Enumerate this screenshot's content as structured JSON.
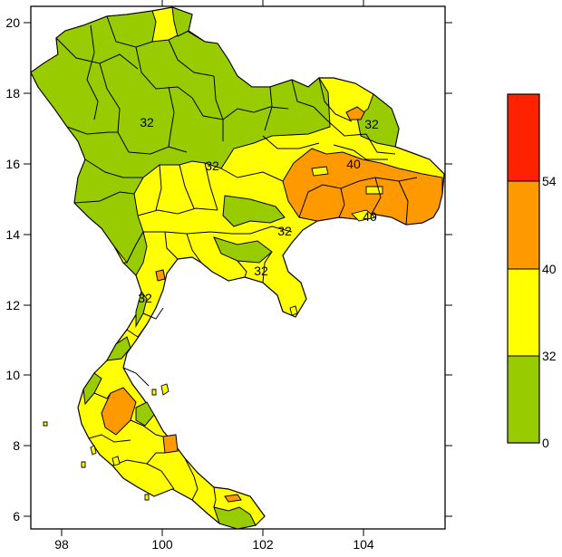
{
  "map": {
    "x_ticks": [
      "98",
      "100",
      "102",
      "104"
    ],
    "y_ticks": [
      "20",
      "18",
      "16",
      "14",
      "12",
      "10",
      "8",
      "6"
    ],
    "contour_labels": [
      "32",
      "32",
      "32",
      "32",
      "32",
      "40",
      "40",
      "32"
    ]
  },
  "legend": {
    "bins": [
      {
        "color": "#ff2200",
        "range": "54+"
      },
      {
        "color": "#ff9900",
        "range": "40-54"
      },
      {
        "color": "#ffff00",
        "range": "32-40"
      },
      {
        "color": "#99cc00",
        "range": "0-32"
      }
    ],
    "labels": [
      "54",
      "40",
      "32",
      "0"
    ]
  }
}
